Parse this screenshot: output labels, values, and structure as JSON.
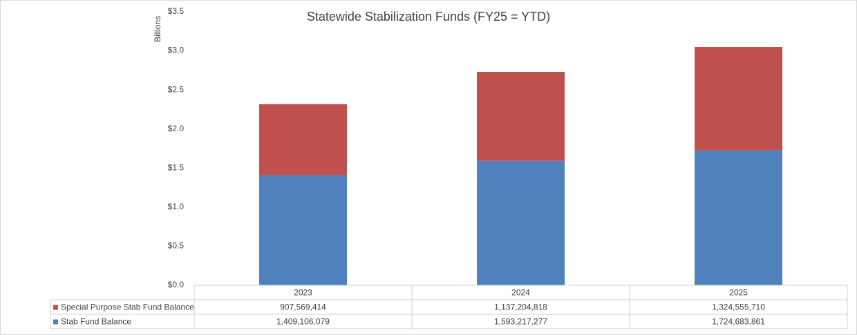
{
  "chart_data": {
    "type": "stacked_bar",
    "title": "Statewide Stabilization Funds (FY25 = YTD)",
    "y_label": "Billions",
    "categories": [
      "2023",
      "2024",
      "2025"
    ],
    "series": [
      {
        "name": "Special Purpose Stab Fund Balance",
        "color": "#c0504d",
        "values": [
          0.907569414,
          1.137204818,
          1.32455571
        ],
        "value_labels": [
          "907,569,414",
          "1,137,204,818",
          "1,324,555,710"
        ]
      },
      {
        "name": "Stab Fund Balance",
        "color": "#4f81bd",
        "values": [
          1.409106079,
          1.593217277,
          1.724683861
        ],
        "value_labels": [
          "1,409,106,079",
          "1,593,217,277",
          "1,724,683,861"
        ]
      }
    ],
    "ylim": [
      0,
      3.5
    ],
    "yticks": [
      {
        "value": 0,
        "label": "$0.0"
      },
      {
        "value": 0.5,
        "label": "$0.5"
      },
      {
        "value": 1,
        "label": "$1.0"
      },
      {
        "value": 1.5,
        "label": "$1.5"
      },
      {
        "value": 2,
        "label": "$2.0"
      },
      {
        "value": 2.5,
        "label": "$2.5"
      },
      {
        "value": 3,
        "label": "$3.0"
      },
      {
        "value": 3.5,
        "label": "$3.5"
      }
    ],
    "grid": false
  }
}
